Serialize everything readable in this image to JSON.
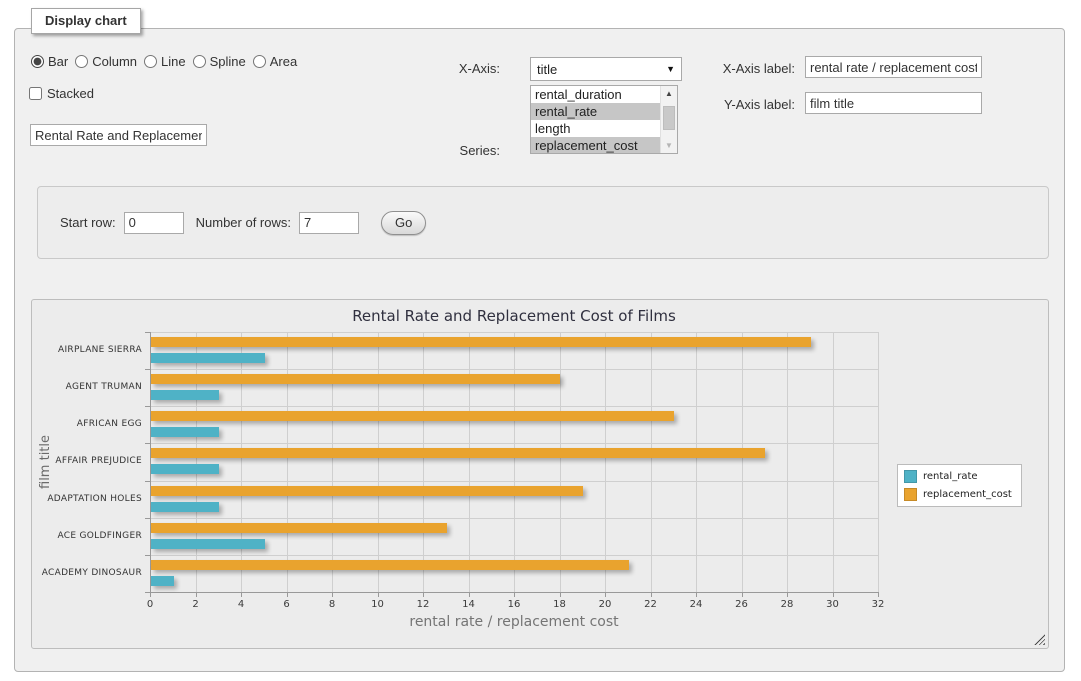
{
  "controls": {
    "legend": "Display chart",
    "chart_types": [
      "Bar",
      "Column",
      "Line",
      "Spline",
      "Area"
    ],
    "selected_chart_type": "Bar",
    "stacked_label": "Stacked",
    "stacked_checked": false,
    "title_value": "Rental Rate and Replacement Cost of Films",
    "xaxis_label": "X-Axis:",
    "xaxis_value": "title",
    "series_label": "Series:",
    "series_options": [
      {
        "label": "rental_duration",
        "selected": false
      },
      {
        "label": "rental_rate",
        "selected": true
      },
      {
        "label": "length",
        "selected": false
      },
      {
        "label": "replacement_cost",
        "selected": true
      }
    ],
    "xaxis_field_label": "X-Axis label:",
    "xaxis_field_value": "rental rate / replacement cost",
    "yaxis_field_label": "Y-Axis label:",
    "yaxis_field_value": "film title"
  },
  "row_controls": {
    "start_row_label": "Start row:",
    "start_row_value": "0",
    "num_rows_label": "Number of rows:",
    "num_rows_value": "7",
    "go_label": "Go"
  },
  "chart_data": {
    "type": "bar",
    "orientation": "horizontal",
    "title": "Rental Rate and Replacement Cost of Films",
    "xlabel": "rental rate / replacement cost",
    "ylabel": "film title",
    "categories": [
      "AIRPLANE SIERRA",
      "AGENT TRUMAN",
      "AFRICAN EGG",
      "AFFAIR PREJUDICE",
      "ADAPTATION HOLES",
      "ACE GOLDFINGER",
      "ACADEMY DINOSAUR"
    ],
    "series": [
      {
        "name": "rental_rate",
        "color": "#4FB2C6",
        "values": [
          4.99,
          2.99,
          2.99,
          2.99,
          2.99,
          4.99,
          0.99
        ]
      },
      {
        "name": "replacement_cost",
        "color": "#E9A32E",
        "values": [
          28.99,
          17.99,
          22.99,
          26.99,
          18.99,
          12.99,
          20.99
        ]
      }
    ],
    "xlim": [
      0,
      32
    ],
    "xticks": [
      0,
      2,
      4,
      6,
      8,
      10,
      12,
      14,
      16,
      18,
      20,
      22,
      24,
      26,
      28,
      30,
      32
    ],
    "grid": true,
    "legend_position": "right"
  }
}
